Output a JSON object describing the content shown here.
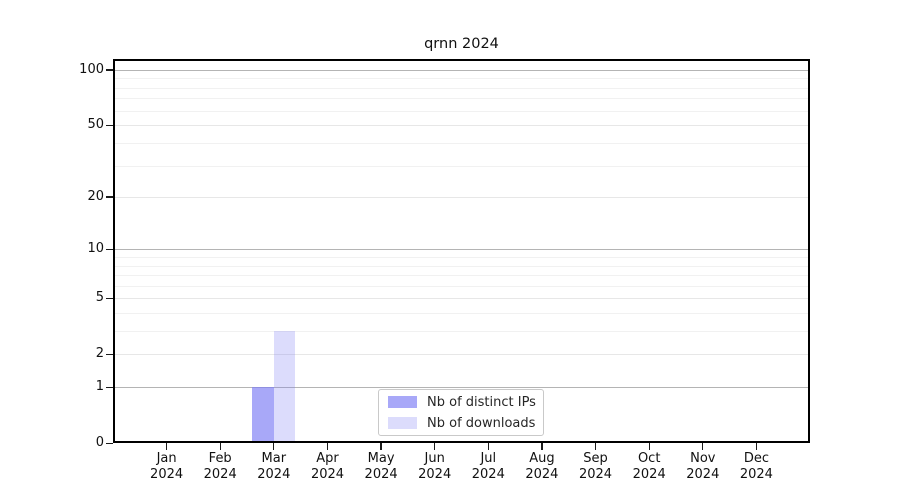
{
  "title": "qrnn 2024",
  "chart_data": {
    "type": "bar",
    "title": "qrnn 2024",
    "categories": [
      "Jan",
      "Feb",
      "Mar",
      "Apr",
      "May",
      "Jun",
      "Jul",
      "Aug",
      "Sep",
      "Oct",
      "Nov",
      "Dec"
    ],
    "x_year": "2024",
    "series": [
      {
        "name": "Nb of distinct IPs",
        "values": [
          0,
          0,
          1,
          0,
          0,
          0,
          0,
          0,
          0,
          0,
          0,
          0
        ],
        "color": "#7d7df5",
        "alpha": 0.67
      },
      {
        "name": "Nb of downloads",
        "values": [
          0,
          0,
          3,
          0,
          0,
          0,
          0,
          0,
          0,
          0,
          0,
          0
        ],
        "color": "#7d7df5",
        "alpha": 0.27
      }
    ],
    "xlabel": "",
    "ylabel": "",
    "yscale": "log10(1+x)",
    "ylim": [
      0,
      115
    ],
    "y_tick_values": [
      0,
      1,
      2,
      5,
      10,
      20,
      50,
      100
    ],
    "y_tick_labels": [
      "0",
      "1",
      "2",
      "5",
      "10",
      "20",
      "50",
      "100"
    ],
    "grid": {
      "decade_lines": [
        1,
        10,
        100
      ],
      "labeled_minor_lines": [
        2,
        5,
        20,
        50
      ],
      "minor_lines": [
        3,
        4,
        6,
        7,
        8,
        9,
        30,
        40,
        60,
        70,
        80,
        90
      ],
      "decade_color": "#b4b4b4",
      "labeled_minor_color": "#e7e7e7",
      "minor_color": "#f1f1f1"
    },
    "legend": {
      "position": "lower center",
      "border_color": "#c9c9c9"
    },
    "frame_color": "#000000",
    "background_color": "#ffffff"
  }
}
